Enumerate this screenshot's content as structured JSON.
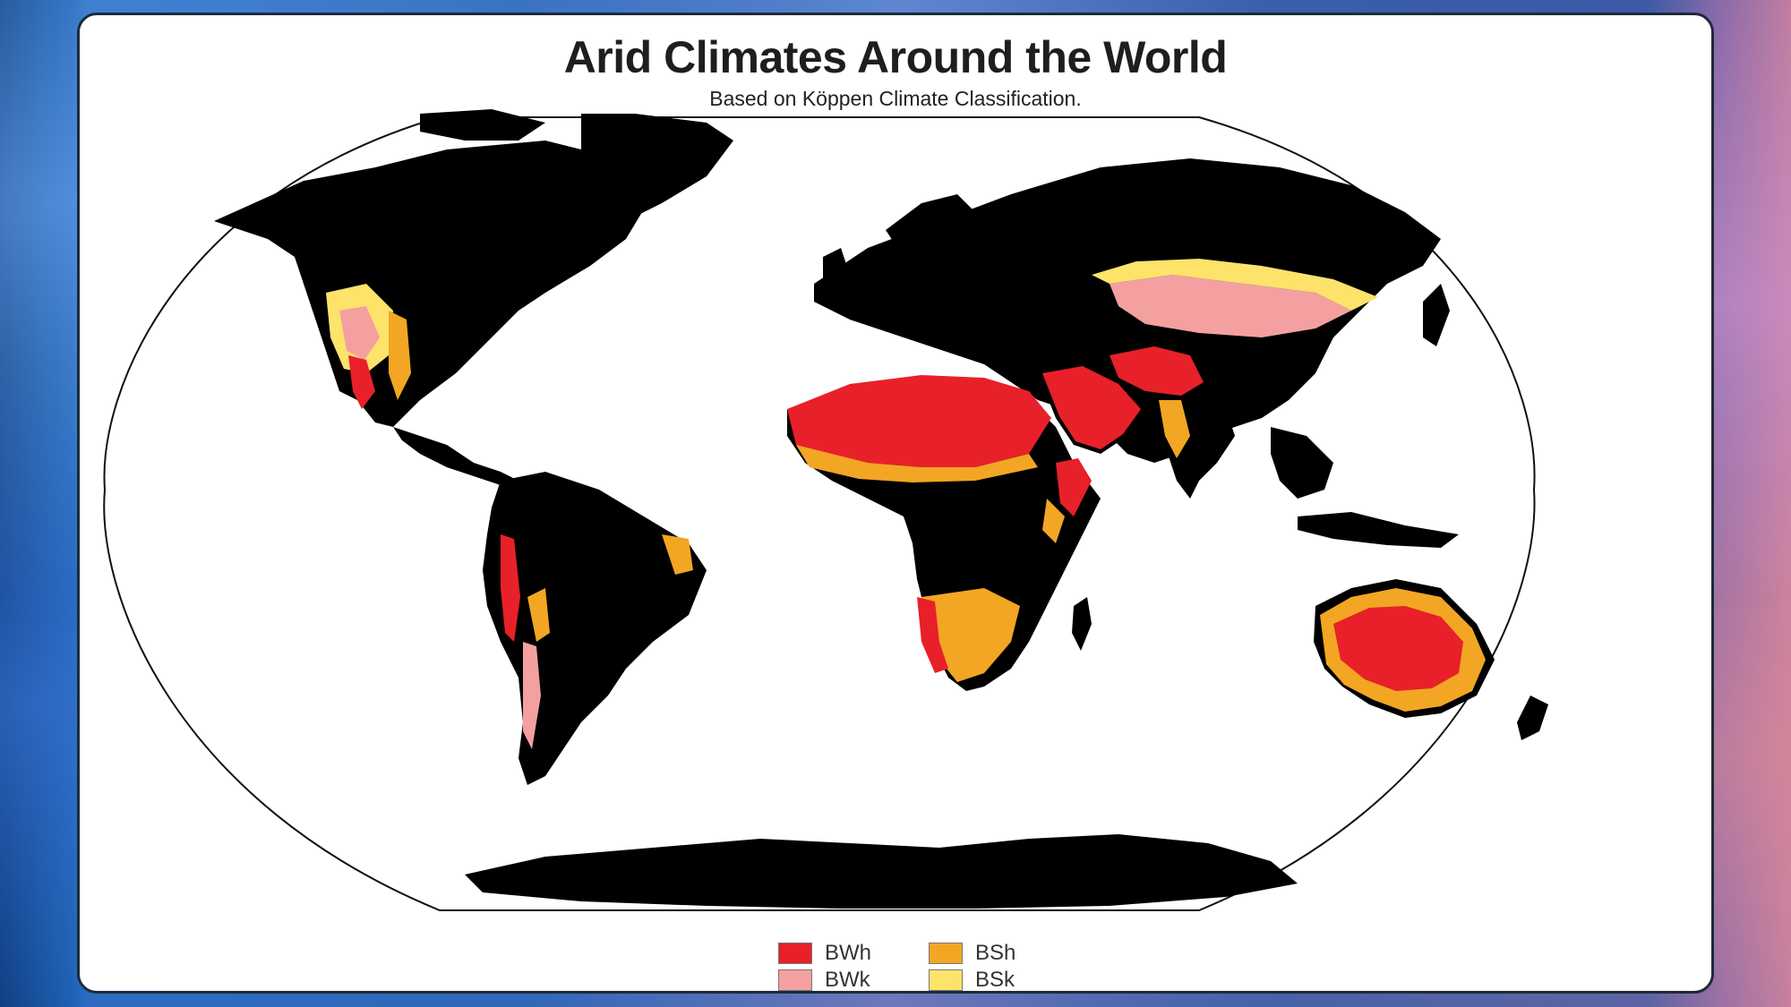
{
  "title": "Arid Climates Around the World",
  "subtitle": "Based on Köppen Climate Classification.",
  "legend": [
    {
      "code": "BWh",
      "color": "#e8202a"
    },
    {
      "code": "BWk",
      "color": "#f4a0a0"
    },
    {
      "code": "BSh",
      "color": "#f2a623"
    },
    {
      "code": "BSk",
      "color": "#fde36a"
    }
  ],
  "colors": {
    "land": "#000000",
    "ocean": "#ffffff",
    "border": "#1c2b3a"
  }
}
